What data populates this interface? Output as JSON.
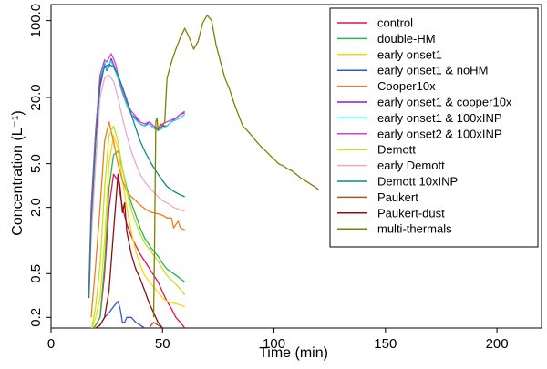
{
  "chart_data": {
    "type": "line",
    "xlabel": "Time (min)",
    "ylabel": "Concentration (L⁻¹)",
    "xlim": [
      0,
      220
    ],
    "ylim": [
      0.16,
      140
    ],
    "log_y": true,
    "grid": false,
    "legend_position": "top-right",
    "x_ticks": [
      0,
      50,
      100,
      150,
      200
    ],
    "y_ticks": [
      {
        "value": 0.2,
        "label": "0.2"
      },
      {
        "value": 0.5,
        "label": "0.5"
      },
      {
        "value": 2,
        "label": "2.0"
      },
      {
        "value": 5,
        "label": "5.0"
      },
      {
        "value": 20,
        "label": "20.0"
      },
      {
        "value": 100,
        "label": "100.0"
      }
    ],
    "series": [
      {
        "name": "control",
        "color": "#e0115f",
        "points": [
          [
            18,
            0.15
          ],
          [
            20,
            0.17
          ],
          [
            22,
            0.2
          ],
          [
            24,
            0.5
          ],
          [
            26,
            2.0
          ],
          [
            28,
            4.0
          ],
          [
            30,
            3.5
          ],
          [
            32,
            2.0
          ],
          [
            34,
            1.4
          ],
          [
            36,
            1.1
          ],
          [
            38,
            0.9
          ],
          [
            40,
            0.75
          ],
          [
            42,
            0.65
          ],
          [
            45,
            0.52
          ],
          [
            48,
            0.42
          ],
          [
            50,
            0.34
          ],
          [
            52,
            0.28
          ],
          [
            54,
            0.24
          ],
          [
            56,
            0.2
          ],
          [
            58,
            0.18
          ],
          [
            60,
            0.16
          ]
        ]
      },
      {
        "name": "double-HM",
        "color": "#2db34a",
        "points": [
          [
            18,
            0.15
          ],
          [
            20,
            0.17
          ],
          [
            22,
            0.2
          ],
          [
            24,
            0.6
          ],
          [
            26,
            3.0
          ],
          [
            28,
            6.0
          ],
          [
            30,
            6.5
          ],
          [
            32,
            4.5
          ],
          [
            34,
            3.0
          ],
          [
            36,
            2.2
          ],
          [
            38,
            1.7
          ],
          [
            40,
            1.3
          ],
          [
            42,
            1.05
          ],
          [
            45,
            0.85
          ],
          [
            48,
            0.72
          ],
          [
            50,
            0.62
          ],
          [
            52,
            0.55
          ],
          [
            55,
            0.5
          ],
          [
            58,
            0.45
          ],
          [
            60,
            0.42
          ]
        ]
      },
      {
        "name": "early onset1",
        "color": "#ffd700",
        "points": [
          [
            18,
            0.15
          ],
          [
            20,
            0.2
          ],
          [
            22,
            0.3
          ],
          [
            24,
            1.0
          ],
          [
            26,
            5.0
          ],
          [
            28,
            9.0
          ],
          [
            30,
            7.0
          ],
          [
            32,
            3.5
          ],
          [
            34,
            2.0
          ],
          [
            36,
            1.2
          ],
          [
            38,
            0.8
          ],
          [
            40,
            0.6
          ],
          [
            42,
            0.48
          ],
          [
            45,
            0.4
          ],
          [
            48,
            0.34
          ],
          [
            50,
            0.3
          ],
          [
            52,
            0.28
          ],
          [
            55,
            0.27
          ],
          [
            58,
            0.26
          ],
          [
            60,
            0.25
          ]
        ]
      },
      {
        "name": "early onset1 & noHM",
        "color": "#3355cc",
        "points": [
          [
            18,
            0.15
          ],
          [
            20,
            0.16
          ],
          [
            22,
            0.17
          ],
          [
            24,
            0.2
          ],
          [
            26,
            0.22
          ],
          [
            28,
            0.25
          ],
          [
            30,
            0.28
          ],
          [
            31,
            0.24
          ],
          [
            32,
            0.18
          ],
          [
            33,
            0.18
          ],
          [
            34,
            0.2
          ],
          [
            36,
            0.2
          ],
          [
            38,
            0.18
          ],
          [
            40,
            0.17
          ],
          [
            42,
            0.16
          ]
        ]
      },
      {
        "name": "Cooper10x",
        "color": "#f47a1e",
        "points": [
          [
            18,
            0.2
          ],
          [
            20,
            0.6
          ],
          [
            22,
            2.0
          ],
          [
            24,
            8.0
          ],
          [
            26,
            12.0
          ],
          [
            28,
            8.0
          ],
          [
            30,
            5.0
          ],
          [
            32,
            3.5
          ],
          [
            34,
            2.8
          ],
          [
            36,
            2.5
          ],
          [
            38,
            2.3
          ],
          [
            40,
            2.1
          ],
          [
            42,
            1.95
          ],
          [
            45,
            1.8
          ],
          [
            48,
            1.75
          ],
          [
            50,
            1.7
          ],
          [
            52,
            1.6
          ],
          [
            54,
            1.6
          ],
          [
            55,
            1.3
          ],
          [
            57,
            1.5
          ],
          [
            58,
            1.3
          ],
          [
            60,
            1.25
          ]
        ]
      },
      {
        "name": "early onset1 & cooper10x",
        "color": "#8b1adf",
        "points": [
          [
            17,
            0.35
          ],
          [
            18,
            1.5
          ],
          [
            20,
            8.0
          ],
          [
            22,
            25.0
          ],
          [
            24,
            40.0
          ],
          [
            25,
            35.0
          ],
          [
            26,
            38.0
          ],
          [
            27,
            45.0
          ],
          [
            28,
            40.0
          ],
          [
            29,
            35.0
          ],
          [
            30,
            30.0
          ],
          [
            32,
            22.0
          ],
          [
            34,
            17.0
          ],
          [
            36,
            14.0
          ],
          [
            38,
            13.0
          ],
          [
            40,
            11.5
          ],
          [
            42,
            11.0
          ],
          [
            44,
            12.0
          ],
          [
            46,
            11.0
          ],
          [
            48,
            10.0
          ],
          [
            50,
            11.0
          ],
          [
            52,
            11.0
          ],
          [
            54,
            12.0
          ],
          [
            56,
            13.0
          ],
          [
            58,
            14.0
          ],
          [
            60,
            14.5
          ]
        ]
      },
      {
        "name": "early onset1 & 100xINP",
        "color": "#1ee0e0",
        "points": [
          [
            17,
            0.4
          ],
          [
            18,
            2.0
          ],
          [
            20,
            10.0
          ],
          [
            22,
            30.0
          ],
          [
            24,
            42.0
          ],
          [
            25,
            36.0
          ],
          [
            26,
            40.0
          ],
          [
            27,
            43.0
          ],
          [
            28,
            38.0
          ],
          [
            29,
            34.0
          ],
          [
            30,
            30.0
          ],
          [
            32,
            22.0
          ],
          [
            34,
            17.0
          ],
          [
            36,
            14.0
          ],
          [
            38,
            12.5
          ],
          [
            40,
            11.5
          ],
          [
            42,
            11.0
          ],
          [
            44,
            11.5
          ],
          [
            46,
            10.5
          ],
          [
            48,
            10.0
          ],
          [
            50,
            10.5
          ],
          [
            52,
            11.0
          ],
          [
            54,
            12.0
          ],
          [
            56,
            12.5
          ],
          [
            58,
            13.0
          ],
          [
            60,
            14.0
          ]
        ]
      },
      {
        "name": "early onset2 & 100xINP",
        "color": "#d43fd4",
        "points": [
          [
            17,
            0.4
          ],
          [
            18,
            2.0
          ],
          [
            20,
            10.0
          ],
          [
            22,
            32.0
          ],
          [
            24,
            44.0
          ],
          [
            25,
            42.0
          ],
          [
            26,
            46.0
          ],
          [
            27,
            50.0
          ],
          [
            28,
            45.0
          ],
          [
            29,
            40.0
          ],
          [
            30,
            32.0
          ],
          [
            32,
            23.0
          ],
          [
            34,
            18.0
          ],
          [
            36,
            15.0
          ],
          [
            38,
            13.5
          ],
          [
            40,
            12.0
          ],
          [
            42,
            11.5
          ],
          [
            44,
            12.0
          ],
          [
            46,
            11.0
          ],
          [
            48,
            10.5
          ],
          [
            50,
            11.5
          ],
          [
            52,
            12.0
          ],
          [
            54,
            12.5
          ],
          [
            56,
            13.0
          ],
          [
            58,
            14.0
          ],
          [
            60,
            15.0
          ]
        ]
      },
      {
        "name": "Demott",
        "color": "#bfe326",
        "points": [
          [
            18,
            0.15
          ],
          [
            20,
            0.25
          ],
          [
            22,
            0.6
          ],
          [
            24,
            3.0
          ],
          [
            26,
            9.0
          ],
          [
            28,
            11.0
          ],
          [
            30,
            8.0
          ],
          [
            32,
            4.5
          ],
          [
            34,
            2.8
          ],
          [
            36,
            1.9
          ],
          [
            38,
            1.45
          ],
          [
            40,
            1.15
          ],
          [
            42,
            0.95
          ],
          [
            45,
            0.78
          ],
          [
            48,
            0.65
          ],
          [
            50,
            0.55
          ],
          [
            52,
            0.48
          ],
          [
            55,
            0.42
          ],
          [
            58,
            0.36
          ],
          [
            60,
            0.32
          ]
        ]
      },
      {
        "name": "early Demott",
        "color": "#f2a7c7",
        "points": [
          [
            17,
            0.3
          ],
          [
            18,
            1.0
          ],
          [
            20,
            5.0
          ],
          [
            22,
            20.0
          ],
          [
            24,
            30.0
          ],
          [
            26,
            32.0
          ],
          [
            28,
            28.0
          ],
          [
            30,
            20.0
          ],
          [
            32,
            13.0
          ],
          [
            34,
            9.0
          ],
          [
            36,
            6.5
          ],
          [
            38,
            5.0
          ],
          [
            40,
            4.0
          ],
          [
            42,
            3.4
          ],
          [
            45,
            2.9
          ],
          [
            48,
            2.5
          ],
          [
            50,
            2.3
          ],
          [
            52,
            2.2
          ],
          [
            55,
            2.0
          ],
          [
            58,
            1.9
          ],
          [
            60,
            1.85
          ]
        ]
      },
      {
        "name": "Demott 10xINP",
        "color": "#0d8a83",
        "points": [
          [
            17,
            0.3
          ],
          [
            18,
            1.5
          ],
          [
            20,
            8.0
          ],
          [
            22,
            28.0
          ],
          [
            24,
            38.0
          ],
          [
            26,
            40.0
          ],
          [
            28,
            38.0
          ],
          [
            30,
            32.0
          ],
          [
            32,
            25.0
          ],
          [
            34,
            19.0
          ],
          [
            36,
            14.0
          ],
          [
            38,
            10.5
          ],
          [
            40,
            8.0
          ],
          [
            42,
            6.5
          ],
          [
            45,
            5.0
          ],
          [
            48,
            4.0
          ],
          [
            50,
            3.5
          ],
          [
            52,
            3.1
          ],
          [
            55,
            2.8
          ],
          [
            58,
            2.6
          ],
          [
            60,
            2.5
          ]
        ]
      },
      {
        "name": "Paukert",
        "color": "#9c5a22",
        "points": [
          [
            44,
            0.16
          ],
          [
            45,
            0.17
          ],
          [
            46,
            0.18
          ],
          [
            48,
            0.17
          ],
          [
            50,
            0.16
          ]
        ]
      },
      {
        "name": "Paukert-dust",
        "color": "#8b1010",
        "points": [
          [
            18,
            0.15
          ],
          [
            22,
            0.17
          ],
          [
            24,
            0.2
          ],
          [
            26,
            0.35
          ],
          [
            28,
            1.2
          ],
          [
            30,
            4.0
          ],
          [
            31,
            3.0
          ],
          [
            32,
            1.8
          ],
          [
            33,
            2.2
          ],
          [
            34,
            1.2
          ],
          [
            36,
            0.75
          ],
          [
            38,
            0.55
          ],
          [
            40,
            0.45
          ],
          [
            42,
            0.35
          ],
          [
            44,
            0.27
          ],
          [
            46,
            0.22
          ],
          [
            48,
            0.18
          ],
          [
            50,
            0.16
          ]
        ]
      },
      {
        "name": "multi-thermals",
        "color": "#808000",
        "points": [
          [
            46,
            0.2
          ],
          [
            46.5,
            1.2
          ],
          [
            47,
            12.0
          ],
          [
            47.5,
            13.0
          ],
          [
            48,
            10.0
          ],
          [
            49,
            11.5
          ],
          [
            50,
            11.0
          ],
          [
            51,
            12.0
          ],
          [
            52,
            30.0
          ],
          [
            54,
            42.0
          ],
          [
            56,
            55.0
          ],
          [
            58,
            70.0
          ],
          [
            60,
            85.0
          ],
          [
            62,
            70.0
          ],
          [
            64,
            55.0
          ],
          [
            66,
            65.0
          ],
          [
            68,
            95.0
          ],
          [
            70,
            112.0
          ],
          [
            72,
            100.0
          ],
          [
            74,
            60.0
          ],
          [
            76,
            42.0
          ],
          [
            78,
            30.0
          ],
          [
            80,
            24.0
          ],
          [
            82,
            18.0
          ],
          [
            84,
            14.0
          ],
          [
            86,
            11.0
          ],
          [
            88,
            10.0
          ],
          [
            90,
            9.0
          ],
          [
            92,
            8.0
          ],
          [
            94,
            7.2
          ],
          [
            96,
            6.6
          ],
          [
            98,
            6.0
          ],
          [
            100,
            5.5
          ],
          [
            102,
            5.0
          ],
          [
            104,
            4.8
          ],
          [
            106,
            4.5
          ],
          [
            108,
            4.3
          ],
          [
            110,
            4.0
          ],
          [
            112,
            3.7
          ],
          [
            114,
            3.5
          ],
          [
            116,
            3.3
          ],
          [
            118,
            3.1
          ],
          [
            120,
            2.9
          ]
        ]
      }
    ]
  }
}
